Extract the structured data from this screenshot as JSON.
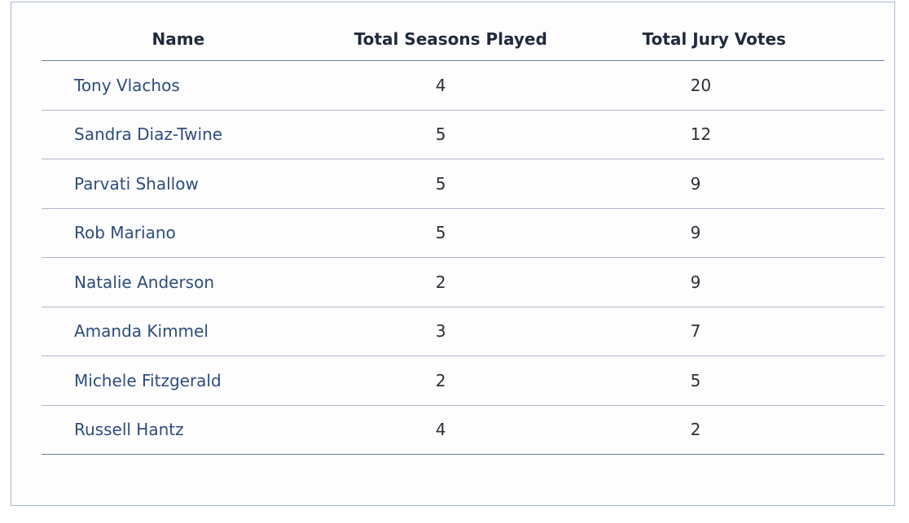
{
  "table": {
    "headers": {
      "name": "Name",
      "seasons": "Total Seasons Played",
      "votes": "Total Jury Votes"
    },
    "rows": [
      {
        "name": "Tony Vlachos",
        "seasons": "4",
        "votes": "20"
      },
      {
        "name": "Sandra Diaz-Twine",
        "seasons": "5",
        "votes": "12"
      },
      {
        "name": "Parvati Shallow",
        "seasons": "5",
        "votes": "9"
      },
      {
        "name": "Rob Mariano",
        "seasons": "5",
        "votes": "9"
      },
      {
        "name": "Natalie Anderson",
        "seasons": "2",
        "votes": "9"
      },
      {
        "name": "Amanda Kimmel",
        "seasons": "3",
        "votes": "7"
      },
      {
        "name": "Michele Fitzgerald",
        "seasons": "2",
        "votes": "5"
      },
      {
        "name": "Russell Hantz",
        "seasons": "4",
        "votes": "2"
      }
    ]
  },
  "colors": {
    "name_text": "#2d4c7c",
    "header_text": "#1f2a3c",
    "rule": "#6f7f99",
    "border": "#a9b7cf"
  }
}
